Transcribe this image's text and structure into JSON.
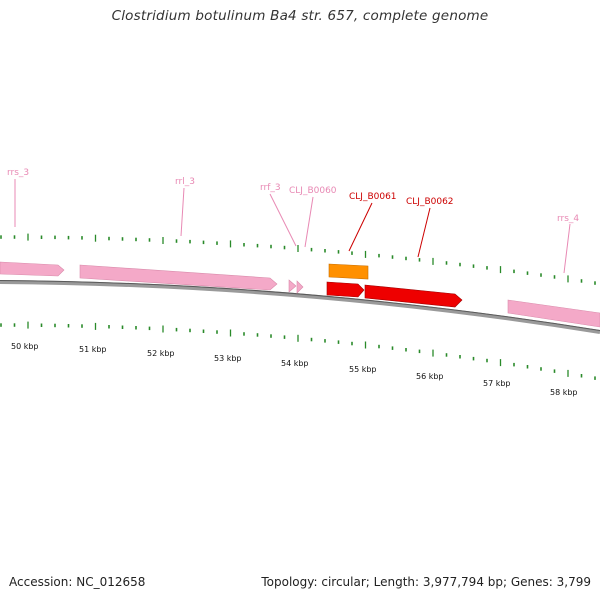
{
  "title": "Clostridium botulinum Ba4 str. 657, complete genome",
  "footer": {
    "accession": "Accession: NC_012658",
    "topology": "Topology: circular; Length: 3,977,794 bp; Genes: 3,799"
  },
  "colors": {
    "rna": "#f4a9c8",
    "rna_label": "#e889b4",
    "cds_highlight": "#ee0000",
    "cds_label": "#cc0000",
    "gene_other": "#ff9000",
    "tick": "#2a8a2a",
    "backbone": "#808080"
  },
  "scale_ticks": [
    "50 kbp",
    "51 kbp",
    "52 kbp",
    "53 kbp",
    "54 kbp",
    "55 kbp",
    "56 kbp",
    "57 kbp",
    "58 kbp"
  ],
  "features": [
    {
      "label": "rrs_3",
      "type": "rna"
    },
    {
      "label": "rrl_3",
      "type": "rna"
    },
    {
      "label": "rrf_3",
      "type": "rna"
    },
    {
      "label": "CLJ_B0060",
      "type": "rna"
    },
    {
      "label": "CLJ_B0061",
      "type": "cds"
    },
    {
      "label": "CLJ_B0062",
      "type": "cds"
    },
    {
      "label": "rrs_4",
      "type": "rna"
    }
  ]
}
